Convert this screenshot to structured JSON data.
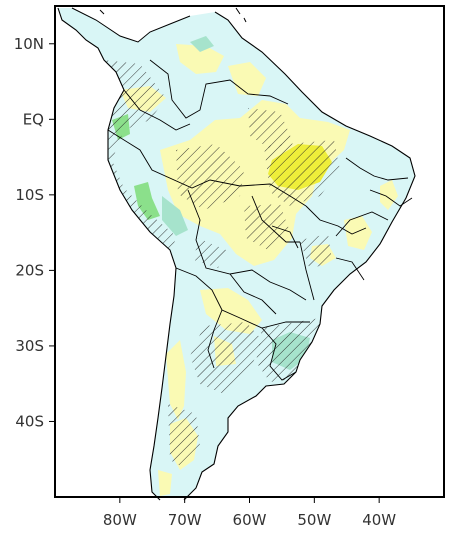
{
  "map": {
    "lon_range": [
      -90,
      -30
    ],
    "lat_range": [
      -50,
      15
    ],
    "x_ticks": [
      {
        "lon": -80,
        "label": "80W"
      },
      {
        "lon": -70,
        "label": "70W"
      },
      {
        "lon": -60,
        "label": "60W"
      },
      {
        "lon": -50,
        "label": "50W"
      },
      {
        "lon": -40,
        "label": "40W"
      }
    ],
    "y_ticks": [
      {
        "lat": 10,
        "label": "10N"
      },
      {
        "lat": 0,
        "label": "EQ"
      },
      {
        "lat": -10,
        "label": "10S"
      },
      {
        "lat": -20,
        "label": "20S"
      },
      {
        "lat": -30,
        "label": "30S"
      },
      {
        "lat": -40,
        "label": "40S"
      }
    ],
    "colors": {
      "light_blue": "#d9f6f6",
      "light_yellow": "#fafab4",
      "yellow": "#eeee3a",
      "teal": "#a6e3cc",
      "green": "#8be08b",
      "ocean": "#ffffff",
      "border": "#000000",
      "hatch": "#222222"
    }
  }
}
